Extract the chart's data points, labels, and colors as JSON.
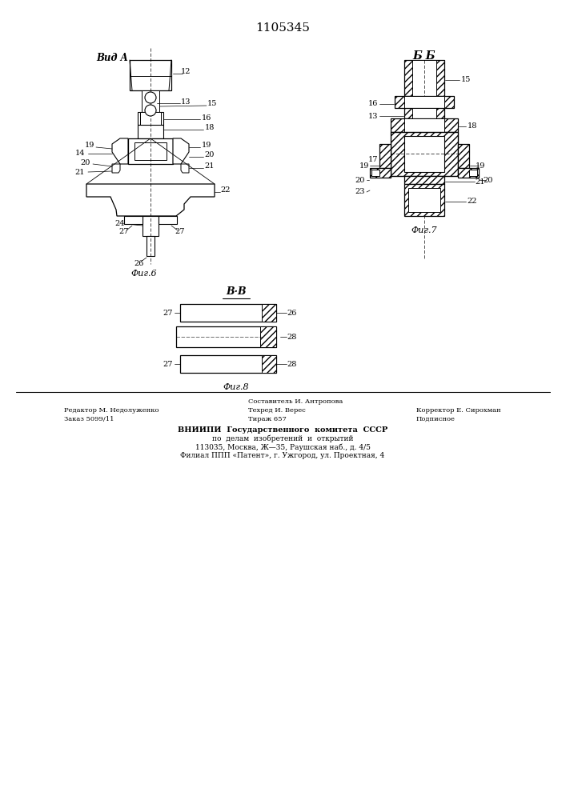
{
  "patent_number": "1105345",
  "background_color": "#ffffff",
  "line_color": "#000000",
  "fig_width": 7.07,
  "fig_height": 10.0,
  "dpi": 100,
  "title_fontsize": 11,
  "label_fontsize": 7,
  "footer_fontsize": 6.5,
  "fig6_label": "Фиг.6",
  "fig7_label": "Фиг.7",
  "fig8_label": "Фиг.8",
  "view_a_label": "Вид A",
  "view_bb_label": "Б Б",
  "view_vv_label": "В·В",
  "footer_line1_left": "Редактор М. Недолуженко",
  "footer_line1_center": "Составитель И. Антропова",
  "footer_line1_right": "Корректор Е. Сирохман",
  "footer_line2_left": "Заказ 5099/11",
  "footer_line2_center": "Техред И. Верес",
  "footer_line2_right": "Подписное",
  "footer_line3_left": "Тираж 657",
  "footer_org1": "ВНИИПИ  Государственного  комитета  СССР",
  "footer_org2": "по  делам  изобретений  и  открытий",
  "footer_org3": "113035, Москва, Ж—35, Раушская наб., д. 4/5",
  "footer_org4": "Филиал ППП «Патент», г. Ужгород, ул. Проектная, 4"
}
